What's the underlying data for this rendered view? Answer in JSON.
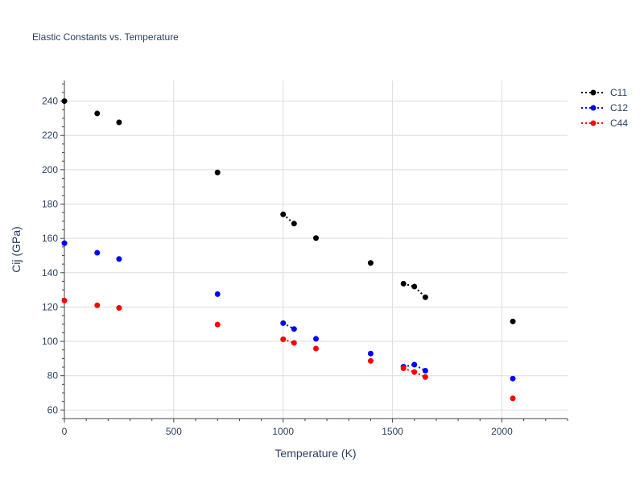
{
  "chart_data": {
    "type": "scatter",
    "title": "Elastic Constants vs. Temperature",
    "xlabel": "Temperature (K)",
    "ylabel": "Cij (GPa)",
    "xlim": [
      0,
      2300
    ],
    "ylim": [
      55,
      252
    ],
    "xticks": [
      0,
      500,
      1000,
      1500,
      2000
    ],
    "yticks": [
      60,
      80,
      100,
      120,
      140,
      160,
      180,
      200,
      220,
      240
    ],
    "grid": true,
    "legend_position": "top-right",
    "series": [
      {
        "name": "C11",
        "color": "#000000",
        "points": [
          [
            0,
            240
          ],
          [
            150,
            232.8
          ],
          [
            250,
            227.6
          ],
          [
            700,
            198.4
          ],
          [
            1000,
            174
          ],
          [
            1050,
            168.6
          ],
          [
            1150,
            160.2
          ],
          [
            1400,
            145.7
          ],
          [
            1550,
            133.6
          ],
          [
            1600,
            131.9
          ],
          [
            1650,
            125.7
          ],
          [
            2050,
            111.6
          ]
        ],
        "connected": [
          [
            1000,
            1050
          ],
          [
            1550,
            1600,
            1650
          ]
        ]
      },
      {
        "name": "C12",
        "color": "#0000ff",
        "points": [
          [
            0,
            157.2
          ],
          [
            150,
            151.6
          ],
          [
            250,
            148
          ],
          [
            700,
            127.5
          ],
          [
            1000,
            110.6
          ],
          [
            1050,
            107.2
          ],
          [
            1150,
            101.5
          ],
          [
            1400,
            92.9
          ],
          [
            1550,
            85.2
          ],
          [
            1600,
            86.4
          ],
          [
            1650,
            82.9
          ],
          [
            2050,
            78.3
          ]
        ],
        "connected": [
          [
            1000,
            1050
          ],
          [
            1550,
            1600,
            1650
          ]
        ]
      },
      {
        "name": "C44",
        "color": "#ff0000",
        "points": [
          [
            0,
            123.8
          ],
          [
            150,
            121
          ],
          [
            250,
            119.5
          ],
          [
            700,
            109.8
          ],
          [
            1000,
            101.2
          ],
          [
            1050,
            99.1
          ],
          [
            1150,
            95.8
          ],
          [
            1400,
            88.6
          ],
          [
            1550,
            84.3
          ],
          [
            1600,
            82.1
          ],
          [
            1650,
            79.2
          ],
          [
            2050,
            66.8
          ]
        ],
        "connected": [
          [
            1000,
            1050
          ],
          [
            1550,
            1600,
            1650
          ]
        ]
      }
    ]
  }
}
